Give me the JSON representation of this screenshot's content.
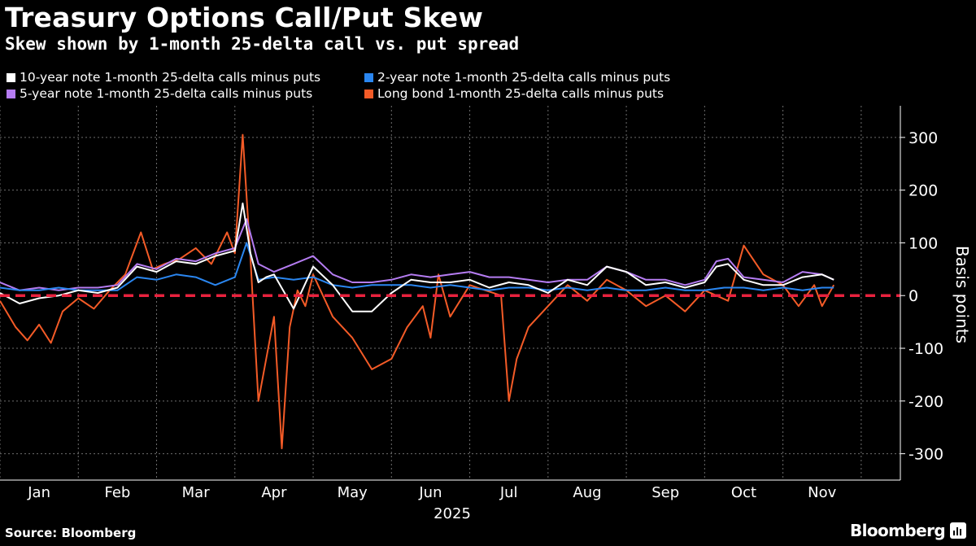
{
  "header": {
    "title": "Treasury Options Call/Put Skew",
    "subtitle": "Skew shown by 1-month 25-delta call vs. put spread"
  },
  "footer": {
    "source": "Source: Bloomberg",
    "brand": "Bloomberg",
    "brand_icon": "bloomberg-terminal-icon"
  },
  "colors": {
    "background": "#000000",
    "grid": "#6e6e6e",
    "zero_line": "#e8223e",
    "ten_year": "#ffffff",
    "two_year": "#2a86f0",
    "five_year": "#b57cf2",
    "long_bond": "#f45b27"
  },
  "chart_data": {
    "type": "line",
    "title": "Treasury Options Call/Put Skew",
    "subtitle": "Skew shown by 1-month 25-delta call vs. put spread",
    "xlabel": "2025",
    "ylabel": "Basis points",
    "y_axis_side": "right",
    "ylim": [
      -350,
      360
    ],
    "yticks": [
      300,
      200,
      100,
      0,
      -100,
      -200,
      -300
    ],
    "ytick_labels": [
      "300",
      "200",
      "100",
      "0",
      "-100",
      "-200",
      "-300"
    ],
    "xlim": [
      0,
      11.5
    ],
    "month_labels": [
      "Jan",
      "Feb",
      "Mar",
      "Apr",
      "May",
      "Jun",
      "Jul",
      "Aug",
      "Sep",
      "Oct",
      "Nov"
    ],
    "year_label": "2025",
    "grid": true,
    "legend_position": "top-left",
    "reference_line": {
      "y": 0,
      "style": "dashed"
    },
    "series": [
      {
        "name": "10-year note 1-month 25-delta calls minus puts",
        "color_key": "ten_year",
        "x": [
          0,
          0.25,
          0.5,
          0.75,
          1.0,
          1.25,
          1.5,
          1.75,
          2.0,
          2.25,
          2.5,
          2.75,
          3.0,
          3.1,
          3.2,
          3.3,
          3.4,
          3.5,
          3.75,
          4.0,
          4.25,
          4.5,
          4.75,
          5.0,
          5.25,
          5.5,
          5.75,
          6.0,
          6.25,
          6.5,
          6.75,
          7.0,
          7.25,
          7.5,
          7.75,
          8.0,
          8.25,
          8.5,
          8.75,
          9.0,
          9.15,
          9.3,
          9.5,
          9.75,
          10.0,
          10.25,
          10.5,
          10.65
        ],
        "y": [
          5,
          -15,
          -5,
          0,
          10,
          5,
          15,
          55,
          45,
          65,
          60,
          75,
          85,
          175,
          80,
          25,
          35,
          40,
          -25,
          55,
          20,
          -30,
          -30,
          5,
          30,
          25,
          25,
          30,
          15,
          25,
          20,
          5,
          30,
          20,
          55,
          45,
          20,
          25,
          15,
          25,
          55,
          60,
          30,
          20,
          20,
          35,
          40,
          30
        ]
      },
      {
        "name": "2-year note 1-month 25-delta calls minus puts",
        "color_key": "two_year",
        "x": [
          0,
          0.25,
          0.5,
          0.75,
          1.0,
          1.25,
          1.5,
          1.75,
          2.0,
          2.25,
          2.5,
          2.75,
          3.0,
          3.15,
          3.3,
          3.5,
          3.75,
          4.0,
          4.25,
          4.5,
          4.75,
          5.0,
          5.25,
          5.5,
          5.75,
          6.0,
          6.25,
          6.5,
          6.75,
          7.0,
          7.25,
          7.5,
          7.75,
          8.0,
          8.25,
          8.5,
          8.75,
          9.0,
          9.25,
          9.5,
          9.75,
          10.0,
          10.25,
          10.5,
          10.65
        ],
        "y": [
          15,
          10,
          10,
          15,
          10,
          10,
          10,
          35,
          30,
          40,
          35,
          20,
          35,
          100,
          30,
          35,
          30,
          35,
          20,
          15,
          20,
          20,
          20,
          15,
          20,
          15,
          10,
          15,
          15,
          10,
          15,
          10,
          15,
          10,
          10,
          15,
          10,
          10,
          15,
          15,
          10,
          15,
          10,
          15,
          15
        ]
      },
      {
        "name": "5-year note 1-month 25-delta calls minus puts",
        "color_key": "five_year",
        "x": [
          0,
          0.25,
          0.5,
          0.75,
          1.0,
          1.25,
          1.5,
          1.75,
          2.0,
          2.25,
          2.5,
          2.75,
          3.0,
          3.15,
          3.3,
          3.5,
          3.75,
          4.0,
          4.25,
          4.5,
          4.75,
          5.0,
          5.25,
          5.5,
          5.75,
          6.0,
          6.25,
          6.5,
          6.75,
          7.0,
          7.25,
          7.5,
          7.75,
          8.0,
          8.25,
          8.5,
          8.75,
          9.0,
          9.15,
          9.3,
          9.5,
          9.75,
          10.0,
          10.25,
          10.5,
          10.65
        ],
        "y": [
          25,
          10,
          15,
          10,
          15,
          15,
          20,
          60,
          50,
          70,
          65,
          80,
          90,
          145,
          60,
          45,
          60,
          75,
          40,
          25,
          25,
          30,
          40,
          35,
          40,
          45,
          35,
          35,
          30,
          25,
          30,
          30,
          55,
          45,
          30,
          30,
          20,
          30,
          65,
          70,
          35,
          30,
          25,
          45,
          40,
          30
        ]
      },
      {
        "name": "Long bond 1-month 25-delta calls minus puts",
        "color_key": "long_bond",
        "x": [
          0,
          0.2,
          0.35,
          0.5,
          0.65,
          0.8,
          1.0,
          1.2,
          1.4,
          1.6,
          1.8,
          1.95,
          2.1,
          2.3,
          2.5,
          2.7,
          2.9,
          3.0,
          3.1,
          3.2,
          3.3,
          3.4,
          3.5,
          3.6,
          3.7,
          3.8,
          3.9,
          4.0,
          4.25,
          4.5,
          4.75,
          5.0,
          5.2,
          5.4,
          5.5,
          5.6,
          5.75,
          6.0,
          6.2,
          6.4,
          6.5,
          6.6,
          6.75,
          7.0,
          7.25,
          7.5,
          7.75,
          8.0,
          8.25,
          8.5,
          8.75,
          9.0,
          9.15,
          9.3,
          9.5,
          9.75,
          10.0,
          10.2,
          10.4,
          10.5,
          10.65
        ],
        "y": [
          -10,
          -60,
          -85,
          -55,
          -90,
          -30,
          -5,
          -25,
          10,
          40,
          120,
          50,
          60,
          70,
          90,
          60,
          120,
          80,
          305,
          70,
          -200,
          -120,
          -40,
          -290,
          -60,
          10,
          -20,
          40,
          -40,
          -80,
          -140,
          -120,
          -60,
          -20,
          -80,
          40,
          -40,
          20,
          10,
          0,
          -200,
          -120,
          -60,
          -20,
          20,
          -10,
          30,
          10,
          -20,
          0,
          -30,
          10,
          0,
          -10,
          95,
          40,
          20,
          -20,
          20,
          -20,
          20
        ]
      }
    ]
  }
}
